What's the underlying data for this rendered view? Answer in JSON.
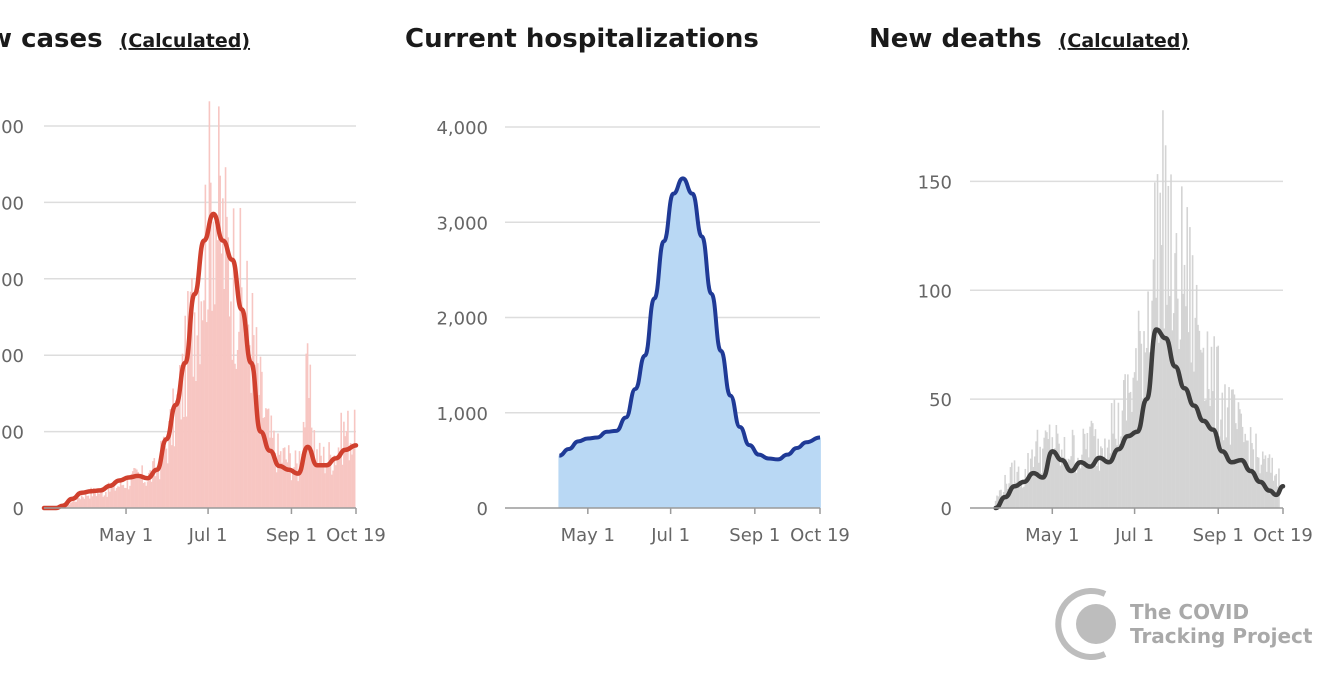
{
  "logo": {
    "line1": "The COVID",
    "line2": "Tracking Project",
    "color": "#bdbdbd"
  },
  "chart_data": [
    {
      "type": "bar",
      "overlay": "line",
      "title": "w cases",
      "subtitle": "(Calculated)",
      "x_start": "2020-03-01",
      "x_end": "2020-10-19",
      "x_tick_labels": [
        "May 1",
        "Jul 1",
        "Sep 1",
        "Oct 19"
      ],
      "x_tick_dates": [
        "2020-05-01",
        "2020-07-01",
        "2020-09-01",
        "2020-10-19"
      ],
      "ylim": [
        0,
        5000
      ],
      "y_ticks": [
        0,
        1000,
        2000,
        3000,
        4000,
        5000
      ],
      "y_tick_labels": [
        "0",
        "000",
        "000",
        "000",
        "000",
        "000"
      ],
      "bar_color": "#f7c6c2",
      "line_color": "#d0402e",
      "series": [
        {
          "name": "Daily",
          "style": "bars",
          "points": [
            [
              "2020-03-15",
              20
            ],
            [
              "2020-03-22",
              90
            ],
            [
              "2020-03-29",
              180
            ],
            [
              "2020-04-05",
              220
            ],
            [
              "2020-04-12",
              230
            ],
            [
              "2020-04-19",
              260
            ],
            [
              "2020-04-26",
              330
            ],
            [
              "2020-05-03",
              400
            ],
            [
              "2020-05-10",
              440
            ],
            [
              "2020-05-17",
              430
            ],
            [
              "2020-05-24",
              550
            ],
            [
              "2020-05-31",
              900
            ],
            [
              "2020-06-07",
              1350
            ],
            [
              "2020-06-14",
              1950
            ],
            [
              "2020-06-21",
              2900
            ],
            [
              "2020-06-28",
              3700
            ],
            [
              "2020-07-05",
              4600
            ],
            [
              "2020-07-12",
              3800
            ],
            [
              "2020-07-19",
              3400
            ],
            [
              "2020-07-26",
              3000
            ],
            [
              "2020-08-02",
              2500
            ],
            [
              "2020-08-09",
              1600
            ],
            [
              "2020-08-16",
              1000
            ],
            [
              "2020-08-23",
              750
            ],
            [
              "2020-08-30",
              700
            ],
            [
              "2020-09-06",
              560
            ],
            [
              "2020-09-13",
              1750
            ],
            [
              "2020-09-20",
              720
            ],
            [
              "2020-09-27",
              700
            ],
            [
              "2020-10-04",
              800
            ],
            [
              "2020-10-11",
              1100
            ],
            [
              "2020-10-18",
              1000
            ]
          ]
        },
        {
          "name": "7-day average",
          "style": "line",
          "points": [
            [
              "2020-03-01",
              0
            ],
            [
              "2020-03-10",
              0
            ],
            [
              "2020-03-15",
              30
            ],
            [
              "2020-03-22",
              120
            ],
            [
              "2020-03-29",
              200
            ],
            [
              "2020-04-05",
              220
            ],
            [
              "2020-04-12",
              230
            ],
            [
              "2020-04-19",
              290
            ],
            [
              "2020-04-26",
              360
            ],
            [
              "2020-05-03",
              400
            ],
            [
              "2020-05-10",
              420
            ],
            [
              "2020-05-17",
              390
            ],
            [
              "2020-05-24",
              500
            ],
            [
              "2020-05-31",
              900
            ],
            [
              "2020-06-07",
              1350
            ],
            [
              "2020-06-14",
              1900
            ],
            [
              "2020-06-21",
              2800
            ],
            [
              "2020-06-28",
              3500
            ],
            [
              "2020-07-05",
              3850
            ],
            [
              "2020-07-12",
              3500
            ],
            [
              "2020-07-19",
              3250
            ],
            [
              "2020-07-26",
              2600
            ],
            [
              "2020-08-02",
              1900
            ],
            [
              "2020-08-09",
              1000
            ],
            [
              "2020-08-16",
              750
            ],
            [
              "2020-08-23",
              550
            ],
            [
              "2020-08-30",
              500
            ],
            [
              "2020-09-06",
              450
            ],
            [
              "2020-09-13",
              800
            ],
            [
              "2020-09-20",
              560
            ],
            [
              "2020-09-27",
              560
            ],
            [
              "2020-10-04",
              650
            ],
            [
              "2020-10-11",
              760
            ],
            [
              "2020-10-19",
              820
            ]
          ]
        }
      ]
    },
    {
      "type": "area",
      "title": "Current hospitalizations",
      "subtitle": "",
      "x_start": "2020-03-01",
      "x_end": "2020-10-19",
      "x_tick_labels": [
        "May 1",
        "Jul 1",
        "Sep 1",
        "Oct 19"
      ],
      "x_tick_dates": [
        "2020-05-01",
        "2020-07-01",
        "2020-09-01",
        "2020-10-19"
      ],
      "ylim": [
        0,
        4000
      ],
      "y_ticks": [
        0,
        1000,
        2000,
        3000,
        4000
      ],
      "y_tick_labels": [
        "0",
        "1,000",
        "2,000",
        "3,000",
        "4,000"
      ],
      "bar_color": "#b9d8f4",
      "line_color": "#1f3a96",
      "series": [
        {
          "name": "Hospitalized",
          "points": [
            [
              "2020-04-10",
              550
            ],
            [
              "2020-04-17",
              620
            ],
            [
              "2020-04-24",
              700
            ],
            [
              "2020-05-01",
              730
            ],
            [
              "2020-05-08",
              740
            ],
            [
              "2020-05-15",
              800
            ],
            [
              "2020-05-22",
              810
            ],
            [
              "2020-05-29",
              950
            ],
            [
              "2020-06-05",
              1250
            ],
            [
              "2020-06-12",
              1600
            ],
            [
              "2020-06-19",
              2200
            ],
            [
              "2020-06-26",
              2800
            ],
            [
              "2020-07-03",
              3300
            ],
            [
              "2020-07-10",
              3460
            ],
            [
              "2020-07-17",
              3300
            ],
            [
              "2020-07-24",
              2850
            ],
            [
              "2020-07-31",
              2250
            ],
            [
              "2020-08-07",
              1650
            ],
            [
              "2020-08-14",
              1180
            ],
            [
              "2020-08-21",
              850
            ],
            [
              "2020-08-28",
              660
            ],
            [
              "2020-09-04",
              560
            ],
            [
              "2020-09-11",
              520
            ],
            [
              "2020-09-18",
              510
            ],
            [
              "2020-09-25",
              560
            ],
            [
              "2020-10-02",
              630
            ],
            [
              "2020-10-09",
              690
            ],
            [
              "2020-10-19",
              740
            ]
          ]
        }
      ]
    },
    {
      "type": "bar",
      "overlay": "line",
      "title": "New deaths",
      "subtitle": "(Calculated)",
      "x_start": "2020-03-01",
      "x_end": "2020-10-19",
      "x_tick_labels": [
        "May 1",
        "Jul 1",
        "Sep 1",
        "Oct 19"
      ],
      "x_tick_dates": [
        "2020-05-01",
        "2020-07-01",
        "2020-09-01",
        "2020-10-19"
      ],
      "ylim": [
        0,
        175
      ],
      "y_ticks": [
        0,
        50,
        100,
        150
      ],
      "y_tick_labels": [
        "0",
        "50",
        "100",
        "150"
      ],
      "bar_color": "#d4d4d4",
      "line_color": "#3d3d3d",
      "series": [
        {
          "name": "Daily",
          "style": "bars",
          "points": [
            [
              "2020-03-20",
              4
            ],
            [
              "2020-03-27",
              12
            ],
            [
              "2020-04-03",
              18
            ],
            [
              "2020-04-10",
              14
            ],
            [
              "2020-04-17",
              30
            ],
            [
              "2020-04-24",
              28
            ],
            [
              "2020-05-01",
              35
            ],
            [
              "2020-05-08",
              25
            ],
            [
              "2020-05-15",
              30
            ],
            [
              "2020-05-22",
              26
            ],
            [
              "2020-05-29",
              36
            ],
            [
              "2020-06-05",
              28
            ],
            [
              "2020-06-12",
              45
            ],
            [
              "2020-06-19",
              40
            ],
            [
              "2020-06-26",
              55
            ],
            [
              "2020-07-03",
              68
            ],
            [
              "2020-07-10",
              95
            ],
            [
              "2020-07-17",
              130
            ],
            [
              "2020-07-24",
              148
            ],
            [
              "2020-07-31",
              100
            ],
            [
              "2020-08-07",
              120
            ],
            [
              "2020-08-14",
              92
            ],
            [
              "2020-08-21",
              88
            ],
            [
              "2020-08-28",
              62
            ],
            [
              "2020-09-04",
              55
            ],
            [
              "2020-09-11",
              45
            ],
            [
              "2020-09-18",
              35
            ],
            [
              "2020-09-25",
              32
            ],
            [
              "2020-10-02",
              22
            ],
            [
              "2020-10-09",
              20
            ],
            [
              "2020-10-16",
              15
            ]
          ]
        },
        {
          "name": "7-day average",
          "style": "line",
          "points": [
            [
              "2020-03-20",
              0
            ],
            [
              "2020-03-27",
              5
            ],
            [
              "2020-04-03",
              10
            ],
            [
              "2020-04-10",
              12
            ],
            [
              "2020-04-17",
              16
            ],
            [
              "2020-04-24",
              14
            ],
            [
              "2020-05-01",
              26
            ],
            [
              "2020-05-08",
              22
            ],
            [
              "2020-05-15",
              17
            ],
            [
              "2020-05-22",
              21
            ],
            [
              "2020-05-29",
              19
            ],
            [
              "2020-06-05",
              23
            ],
            [
              "2020-06-12",
              21
            ],
            [
              "2020-06-19",
              27
            ],
            [
              "2020-06-26",
              33
            ],
            [
              "2020-07-03",
              35
            ],
            [
              "2020-07-10",
              50
            ],
            [
              "2020-07-17",
              82
            ],
            [
              "2020-07-24",
              78
            ],
            [
              "2020-07-31",
              65
            ],
            [
              "2020-08-07",
              55
            ],
            [
              "2020-08-14",
              47
            ],
            [
              "2020-08-21",
              40
            ],
            [
              "2020-08-28",
              36
            ],
            [
              "2020-09-04",
              26
            ],
            [
              "2020-09-11",
              21
            ],
            [
              "2020-09-18",
              22
            ],
            [
              "2020-09-25",
              17
            ],
            [
              "2020-10-02",
              12
            ],
            [
              "2020-10-09",
              8
            ],
            [
              "2020-10-14",
              6
            ],
            [
              "2020-10-19",
              10
            ]
          ]
        }
      ]
    }
  ]
}
